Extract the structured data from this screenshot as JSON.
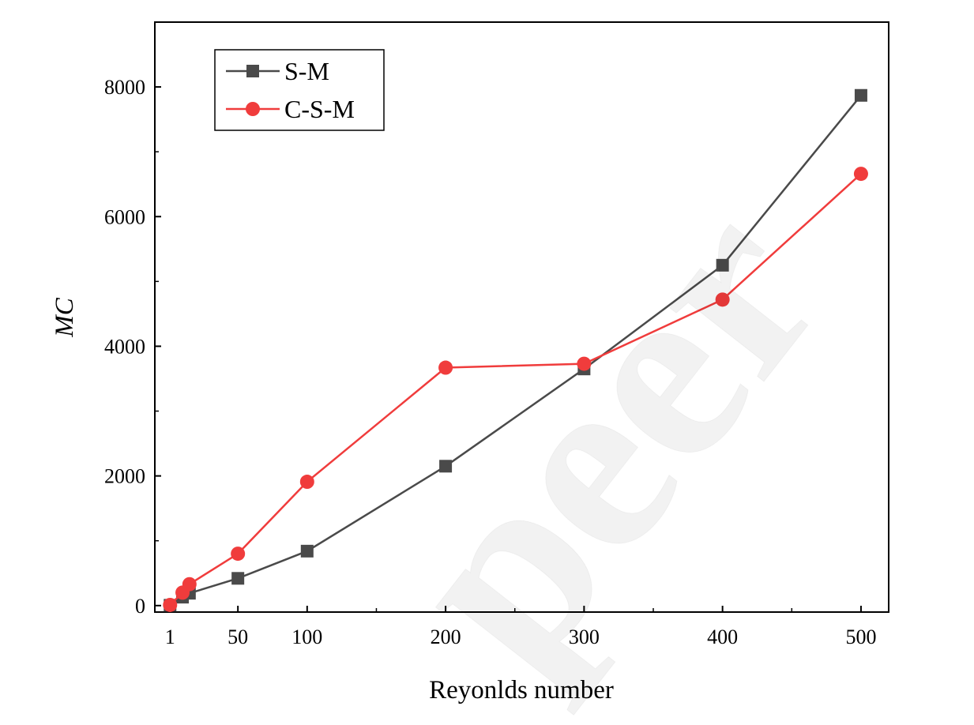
{
  "chart_data": {
    "type": "line",
    "title": "",
    "xlabel": "Reyonlds number",
    "ylabel": "MC",
    "xlim": [
      -10,
      520
    ],
    "ylim": [
      -100,
      9000
    ],
    "x_ticks": [
      1,
      50,
      100,
      200,
      300,
      400,
      500
    ],
    "y_ticks": [
      0,
      2000,
      4000,
      6000,
      8000
    ],
    "grid": false,
    "legend": "top-left",
    "series": [
      {
        "name": "S-M",
        "color": "#4a4a4a",
        "marker": "square",
        "points": [
          {
            "x": 1,
            "y": 5
          },
          {
            "x": 10,
            "y": 130
          },
          {
            "x": 15,
            "y": 190
          },
          {
            "x": 50,
            "y": 420
          },
          {
            "x": 100,
            "y": 840
          },
          {
            "x": 200,
            "y": 2150
          },
          {
            "x": 300,
            "y": 3650
          },
          {
            "x": 400,
            "y": 5250
          },
          {
            "x": 500,
            "y": 7870
          }
        ]
      },
      {
        "name": "C-S-M",
        "color": "#f03c3c",
        "marker": "circle",
        "points": [
          {
            "x": 1,
            "y": 10
          },
          {
            "x": 10,
            "y": 200
          },
          {
            "x": 15,
            "y": 330
          },
          {
            "x": 50,
            "y": 800
          },
          {
            "x": 100,
            "y": 1910
          },
          {
            "x": 200,
            "y": 3670
          },
          {
            "x": 300,
            "y": 3730
          },
          {
            "x": 400,
            "y": 4720
          },
          {
            "x": 500,
            "y": 6660
          }
        ]
      }
    ]
  }
}
